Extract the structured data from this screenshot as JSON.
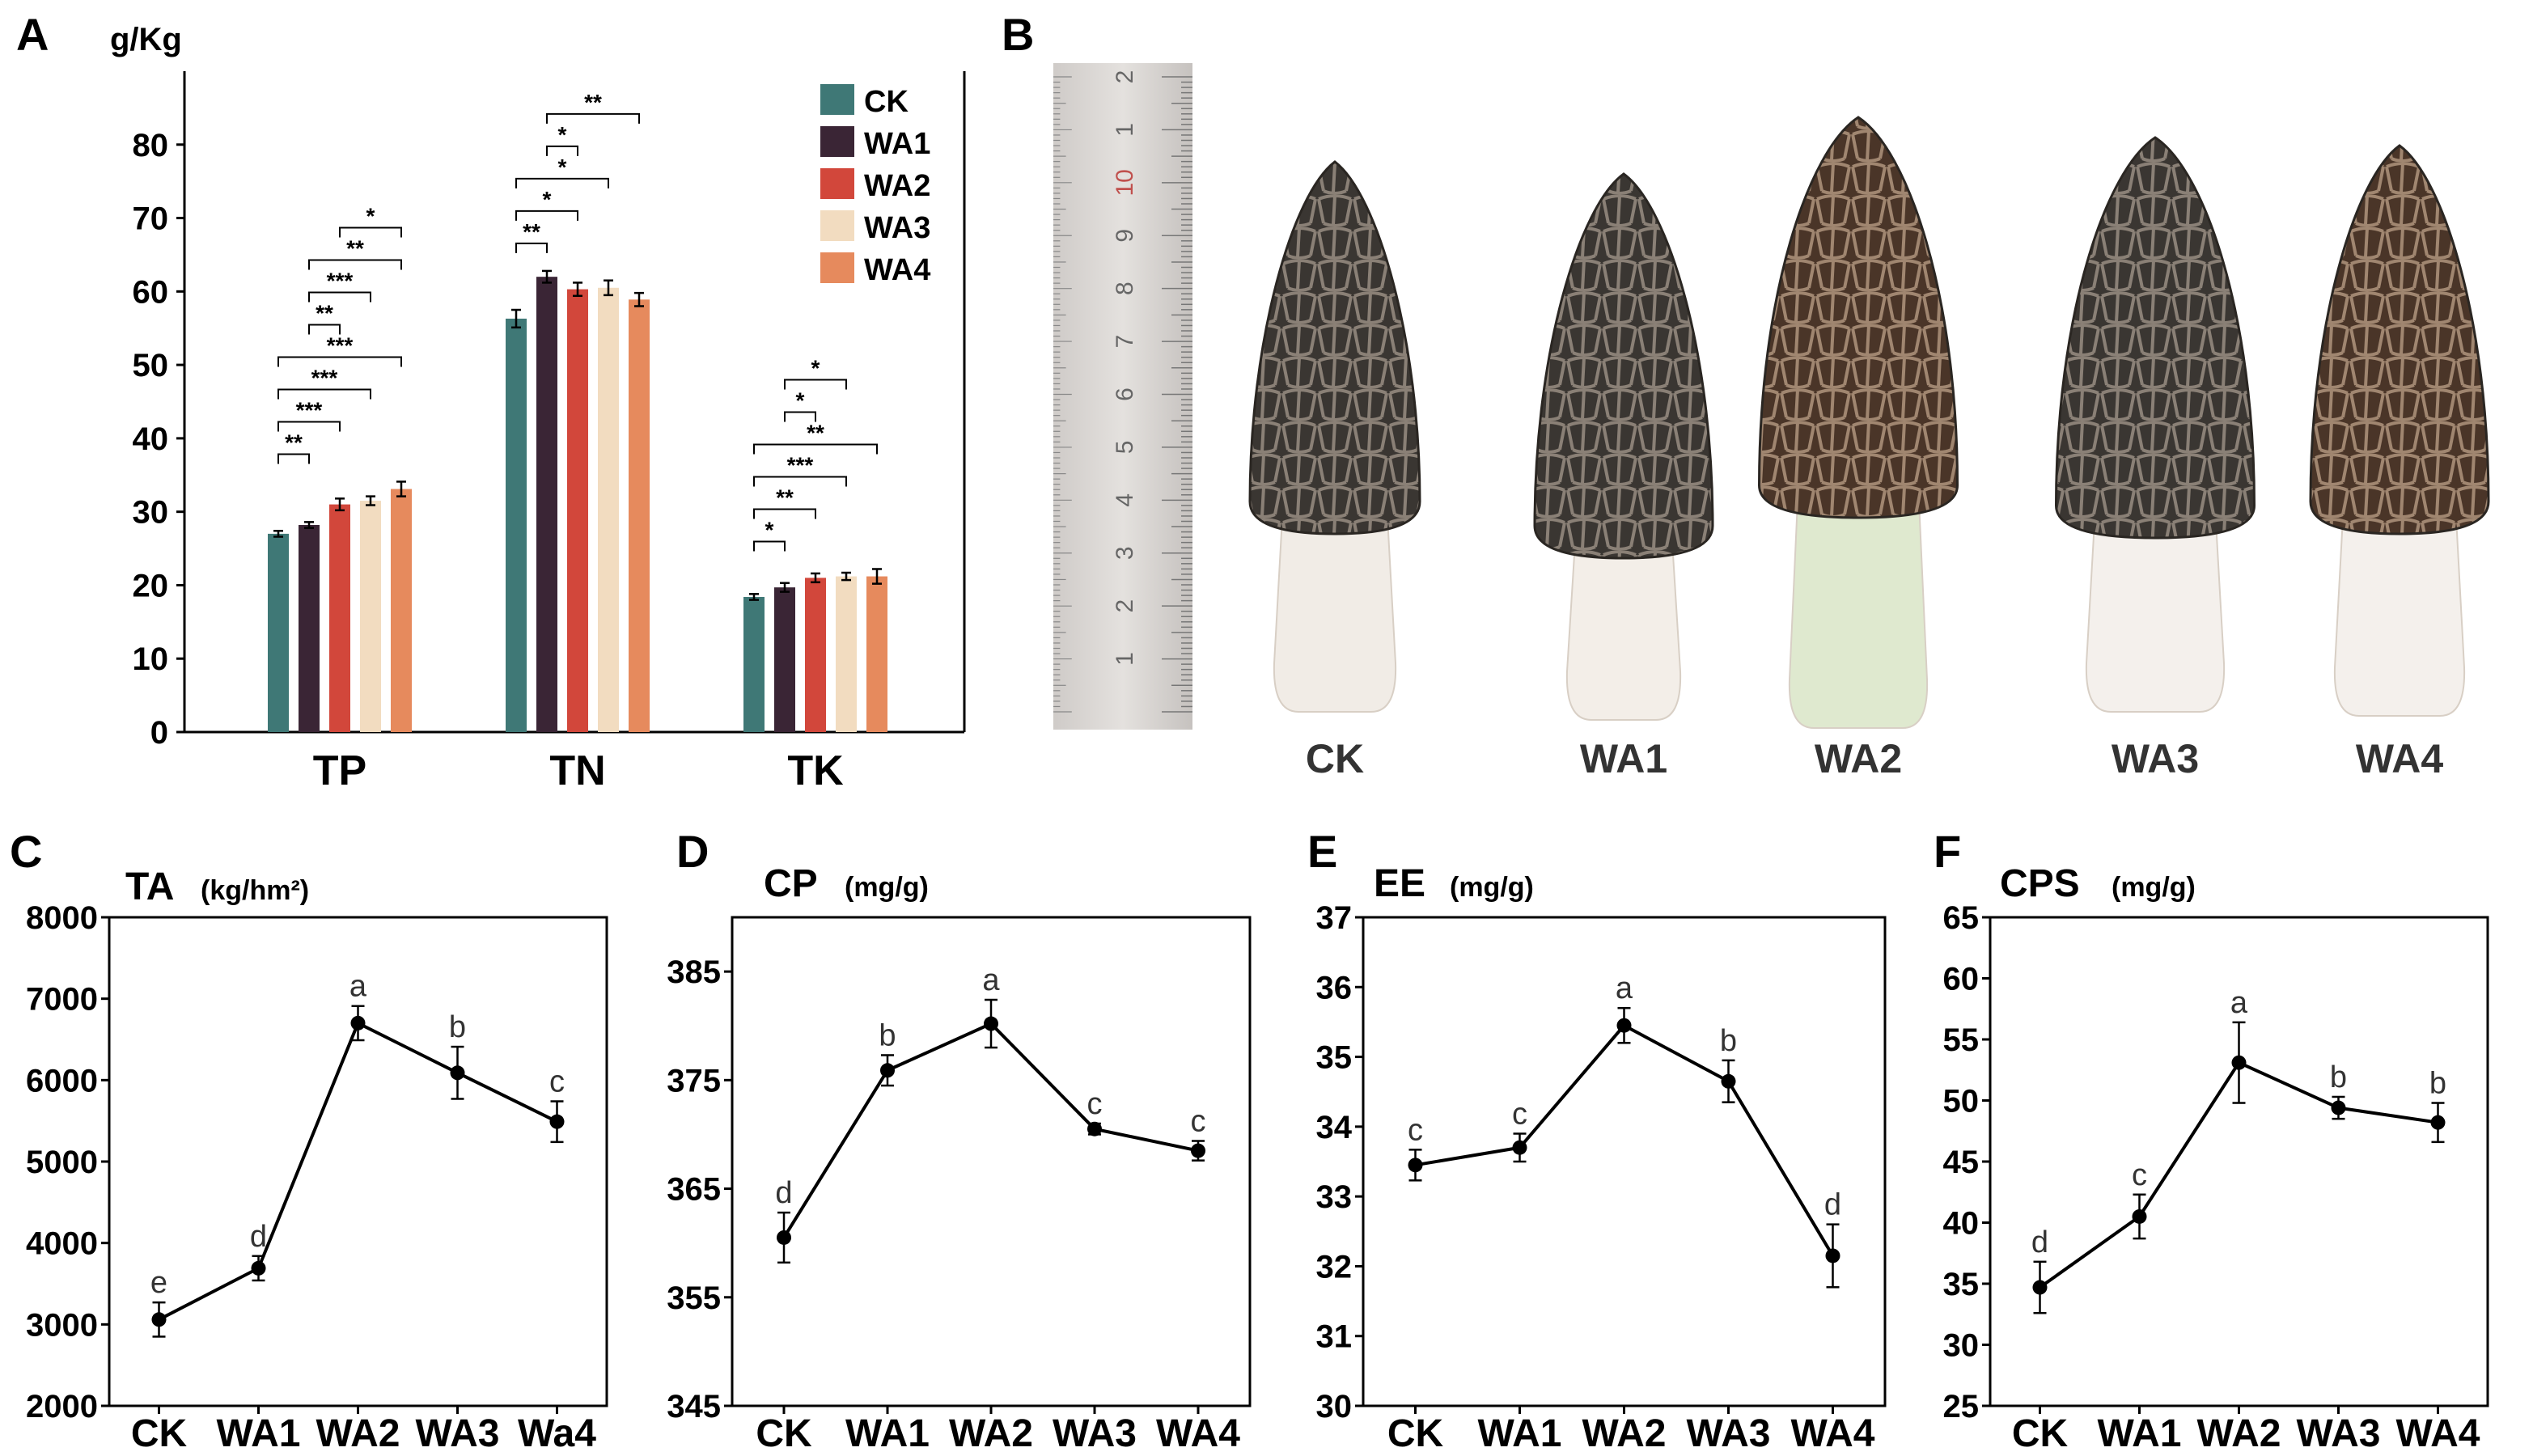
{
  "panels": {
    "A": "A",
    "B": "B",
    "C": "C",
    "D": "D",
    "E": "E",
    "F": "F"
  },
  "colors": {
    "CK": "#3f7876",
    "WA1": "#3a2535",
    "WA2": "#d2473b",
    "WA3": "#f2dcc0",
    "WA4": "#e68a5d"
  },
  "chart_data": [
    {
      "panel": "A",
      "type": "bar",
      "ylabel": "g/Kg",
      "ylim": [
        0,
        90
      ],
      "yticks": [
        0,
        10,
        20,
        30,
        40,
        50,
        60,
        70,
        80
      ],
      "categories": [
        "TP",
        "TN",
        "TK"
      ],
      "legend_position": "top-right",
      "series": [
        {
          "name": "CK",
          "values": [
            27.0,
            56.3,
            18.4
          ],
          "errors": [
            0.4,
            1.2,
            0.4
          ]
        },
        {
          "name": "WA1",
          "values": [
            28.2,
            62.0,
            19.7
          ],
          "errors": [
            0.4,
            0.8,
            0.6
          ]
        },
        {
          "name": "WA2",
          "values": [
            31.0,
            60.3,
            21.0
          ],
          "errors": [
            0.8,
            0.9,
            0.6
          ]
        },
        {
          "name": "WA3",
          "values": [
            31.5,
            60.5,
            21.2
          ],
          "errors": [
            0.6,
            1.0,
            0.5
          ]
        },
        {
          "name": "WA4",
          "values": [
            33.1,
            58.9,
            21.2
          ],
          "errors": [
            1.0,
            0.9,
            1.0
          ]
        }
      ],
      "significance": [
        {
          "group": 0,
          "from": 0,
          "to": 1,
          "label": "**"
        },
        {
          "group": 0,
          "from": 0,
          "to": 2,
          "label": "***"
        },
        {
          "group": 0,
          "from": 0,
          "to": 3,
          "label": "***"
        },
        {
          "group": 0,
          "from": 0,
          "to": 4,
          "label": "***"
        },
        {
          "group": 0,
          "from": 1,
          "to": 2,
          "label": "**"
        },
        {
          "group": 0,
          "from": 1,
          "to": 3,
          "label": "***"
        },
        {
          "group": 0,
          "from": 1,
          "to": 4,
          "label": "**"
        },
        {
          "group": 0,
          "from": 2,
          "to": 4,
          "label": "*"
        },
        {
          "group": 1,
          "from": 0,
          "to": 1,
          "label": "**"
        },
        {
          "group": 1,
          "from": 0,
          "to": 2,
          "label": "*"
        },
        {
          "group": 1,
          "from": 0,
          "to": 3,
          "label": "*"
        },
        {
          "group": 1,
          "from": 1,
          "to": 2,
          "label": "*"
        },
        {
          "group": 1,
          "from": 1,
          "to": 4,
          "label": "**"
        },
        {
          "group": 2,
          "from": 0,
          "to": 1,
          "label": "*"
        },
        {
          "group": 2,
          "from": 0,
          "to": 2,
          "label": "**"
        },
        {
          "group": 2,
          "from": 0,
          "to": 3,
          "label": "***"
        },
        {
          "group": 2,
          "from": 0,
          "to": 4,
          "label": "**"
        },
        {
          "group": 2,
          "from": 1,
          "to": 2,
          "label": "*"
        },
        {
          "group": 2,
          "from": 1,
          "to": 3,
          "label": "*"
        }
      ]
    },
    {
      "panel": "C",
      "type": "line",
      "title": "TA",
      "unit": "(kg/hm²)",
      "ylim": [
        2000,
        8000
      ],
      "yticks": [
        2000,
        3000,
        4000,
        5000,
        6000,
        7000,
        8000
      ],
      "categories": [
        "CK",
        "WA1",
        "WA2",
        "WA3",
        "Wa4"
      ],
      "values": [
        3060,
        3690,
        6700,
        6090,
        5490
      ],
      "errors": [
        210,
        150,
        210,
        320,
        250
      ],
      "letters": [
        "e",
        "d",
        "a",
        "b",
        "c"
      ]
    },
    {
      "panel": "D",
      "type": "line",
      "title": "CP",
      "unit": "(mg/g)",
      "ylim": [
        345,
        390
      ],
      "yticks": [
        345,
        355,
        365,
        375,
        385
      ],
      "categories": [
        "CK",
        "WA1",
        "WA2",
        "WA3",
        "WA4"
      ],
      "values": [
        360.5,
        375.9,
        380.2,
        370.5,
        368.5
      ],
      "errors": [
        2.3,
        1.4,
        2.2,
        0.5,
        0.9
      ],
      "letters": [
        "d",
        "b",
        "a",
        "c",
        "c"
      ]
    },
    {
      "panel": "E",
      "type": "line",
      "title": "EE",
      "unit": "(mg/g)",
      "ylim": [
        30,
        37
      ],
      "yticks": [
        30,
        31,
        32,
        33,
        34,
        35,
        36,
        37
      ],
      "categories": [
        "CK",
        "WA1",
        "WA2",
        "WA3",
        "WA4"
      ],
      "values": [
        33.45,
        33.7,
        35.45,
        34.65,
        32.15
      ],
      "errors": [
        0.22,
        0.2,
        0.25,
        0.3,
        0.45
      ],
      "letters": [
        "c",
        "c",
        "a",
        "b",
        "d"
      ]
    },
    {
      "panel": "F",
      "type": "line",
      "title": "CPS",
      "unit": "(mg/g)",
      "ylim": [
        25,
        65
      ],
      "yticks": [
        25,
        30,
        35,
        40,
        45,
        50,
        55,
        60,
        65
      ],
      "categories": [
        "CK",
        "WA1",
        "WA2",
        "WA3",
        "WA4"
      ],
      "values": [
        34.7,
        40.5,
        53.1,
        49.4,
        48.2
      ],
      "errors": [
        2.1,
        1.8,
        3.3,
        0.9,
        1.6
      ],
      "letters": [
        "d",
        "c",
        "a",
        "b",
        "b"
      ]
    }
  ],
  "photos": {
    "labels": [
      "CK",
      "WA1",
      "WA2",
      "WA3",
      "WA4"
    ],
    "ruler_numbers": [
      "1",
      "2",
      "3",
      "4",
      "5",
      "6",
      "7",
      "8",
      "9",
      "10",
      "1",
      "2"
    ]
  }
}
